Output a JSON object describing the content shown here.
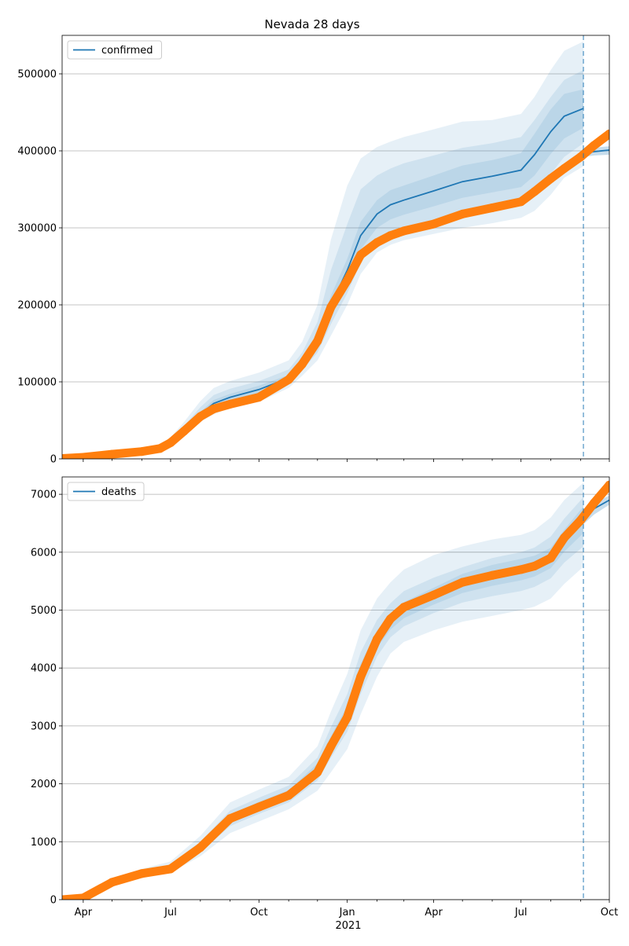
{
  "chart_data": [
    {
      "type": "line",
      "title": "Nevada 28 days",
      "xlabel": "",
      "ylabel": "",
      "x_range": [
        "2020-03-10",
        "2021-10-01"
      ],
      "ylim": [
        0,
        550000
      ],
      "yticks": [
        0,
        100000,
        200000,
        300000,
        400000,
        500000
      ],
      "ytick_labels": [
        "0",
        "100000",
        "200000",
        "300000",
        "400000",
        "500000"
      ],
      "grid": "horizontal",
      "legend_position": "top-left",
      "forecast_date": "2021-09-04",
      "colors": {
        "model": "#1f77b4",
        "observed": "#ff7f0e",
        "band": "#1f77b4"
      },
      "series": [
        {
          "name": "confirmed",
          "kind": "model-median",
          "x": [
            "2020-03-10",
            "2020-04-01",
            "2020-05-01",
            "2020-06-01",
            "2020-06-20",
            "2020-07-01",
            "2020-07-15",
            "2020-08-01",
            "2020-08-15",
            "2020-09-01",
            "2020-10-01",
            "2020-11-01",
            "2020-11-15",
            "2020-12-01",
            "2020-12-15",
            "2021-01-01",
            "2021-01-15",
            "2021-02-01",
            "2021-02-15",
            "2021-03-01",
            "2021-04-01",
            "2021-05-01",
            "2021-06-01",
            "2021-07-01",
            "2021-07-15",
            "2021-08-01",
            "2021-08-15",
            "2021-09-04"
          ],
          "values": [
            500,
            2500,
            6000,
            10000,
            14000,
            22000,
            38000,
            58000,
            72000,
            80000,
            90000,
            105000,
            125000,
            155000,
            200000,
            245000,
            290000,
            318000,
            330000,
            336000,
            348000,
            360000,
            367000,
            375000,
            395000,
            425000,
            445000,
            455000
          ]
        },
        {
          "name": "",
          "kind": "model-continuation",
          "x": [
            "2021-09-04",
            "2021-09-15",
            "2021-10-01"
          ],
          "values": [
            397000,
            399000,
            401000
          ]
        },
        {
          "name": "",
          "kind": "observed",
          "x": [
            "2020-03-10",
            "2020-04-01",
            "2020-05-01",
            "2020-06-01",
            "2020-06-20",
            "2020-07-01",
            "2020-07-15",
            "2020-08-01",
            "2020-08-15",
            "2020-09-01",
            "2020-10-01",
            "2020-11-01",
            "2020-11-15",
            "2020-12-01",
            "2020-12-15",
            "2021-01-01",
            "2021-01-15",
            "2021-02-01",
            "2021-02-15",
            "2021-03-01",
            "2021-04-01",
            "2021-05-01",
            "2021-06-01",
            "2021-07-01",
            "2021-07-15",
            "2021-08-01",
            "2021-08-15",
            "2021-09-01",
            "2021-09-15",
            "2021-10-01"
          ],
          "values": [
            500,
            2000,
            6000,
            9500,
            13500,
            21000,
            36000,
            55000,
            65000,
            71000,
            80000,
            103000,
            123000,
            153000,
            197000,
            232000,
            265000,
            281000,
            290000,
            296000,
            305000,
            318000,
            326000,
            334000,
            347000,
            364000,
            377000,
            392000,
            407000,
            422000
          ]
        }
      ],
      "bands": [
        {
          "x": [
            "2020-03-10",
            "2020-04-01",
            "2020-05-01",
            "2020-06-01",
            "2020-06-20",
            "2020-07-01",
            "2020-07-15",
            "2020-08-01",
            "2020-08-15",
            "2020-09-01",
            "2020-10-01",
            "2020-11-01",
            "2020-11-15",
            "2020-12-01",
            "2020-12-15",
            "2021-01-01",
            "2021-01-15",
            "2021-02-01",
            "2021-02-15",
            "2021-03-01",
            "2021-04-01",
            "2021-05-01",
            "2021-06-01",
            "2021-07-01",
            "2021-07-15",
            "2021-08-01",
            "2021-08-15",
            "2021-09-04"
          ],
          "lower": [
            300,
            1800,
            5000,
            8500,
            12000,
            18000,
            30000,
            48000,
            58000,
            66000,
            74000,
            92000,
            108000,
            128000,
            160000,
            200000,
            240000,
            268000,
            278000,
            284000,
            292000,
            300000,
            306000,
            313000,
            322000,
            343000,
            365000,
            380000
          ],
          "upper": [
            800,
            3500,
            7500,
            12000,
            17000,
            28000,
            48000,
            75000,
            92000,
            101000,
            112000,
            128000,
            152000,
            200000,
            285000,
            355000,
            390000,
            405000,
            412000,
            418000,
            428000,
            438000,
            440000,
            448000,
            470000,
            505000,
            530000,
            542000
          ]
        },
        {
          "x": [
            "2020-03-10",
            "2020-04-01",
            "2020-05-01",
            "2020-06-01",
            "2020-06-20",
            "2020-07-01",
            "2020-07-15",
            "2020-08-01",
            "2020-08-15",
            "2020-09-01",
            "2020-10-01",
            "2020-11-01",
            "2020-11-15",
            "2020-12-01",
            "2020-12-15",
            "2021-01-01",
            "2021-01-15",
            "2021-02-01",
            "2021-02-15",
            "2021-03-01",
            "2021-04-01",
            "2021-05-01",
            "2021-06-01",
            "2021-07-01",
            "2021-07-15",
            "2021-08-01",
            "2021-08-15",
            "2021-09-04"
          ],
          "lower": [
            350,
            2000,
            5300,
            9000,
            12700,
            19500,
            33000,
            52000,
            63000,
            71000,
            80000,
            97000,
            115000,
            138000,
            175000,
            215000,
            255000,
            282000,
            292000,
            298000,
            308000,
            318000,
            325000,
            332000,
            345000,
            370000,
            392000,
            410000
          ],
          "upper": [
            700,
            3000,
            7000,
            11000,
            15500,
            25000,
            43000,
            67000,
            83000,
            91000,
            101000,
            116000,
            138000,
            178000,
            245000,
            305000,
            350000,
            368000,
            377000,
            384000,
            394000,
            404000,
            410000,
            418000,
            440000,
            470000,
            492000,
            505000
          ]
        },
        {
          "x": [
            "2020-03-10",
            "2020-04-01",
            "2020-05-01",
            "2020-06-01",
            "2020-06-20",
            "2020-07-01",
            "2020-07-15",
            "2020-08-01",
            "2020-08-15",
            "2020-09-01",
            "2020-10-01",
            "2020-11-01",
            "2020-11-15",
            "2020-12-01",
            "2020-12-15",
            "2021-01-01",
            "2021-01-15",
            "2021-02-01",
            "2021-02-15",
            "2021-03-01",
            "2021-04-01",
            "2021-05-01",
            "2021-06-01",
            "2021-07-01",
            "2021-07-15",
            "2021-08-01",
            "2021-08-15",
            "2021-09-04"
          ],
          "lower": [
            420,
            2200,
            5600,
            9400,
            13300,
            20700,
            35500,
            55000,
            67500,
            75500,
            85000,
            101000,
            120000,
            147000,
            188000,
            230000,
            272000,
            300000,
            311000,
            317000,
            328000,
            339000,
            346000,
            353000,
            368000,
            396000,
            416000,
            430000
          ],
          "upper": [
            600,
            2800,
            6500,
            10600,
            14700,
            23300,
            40500,
            61000,
            76500,
            84500,
            95000,
            109000,
            130000,
            163000,
            212000,
            260000,
            308000,
            336000,
            349000,
            355000,
            368000,
            381000,
            388000,
            397000,
            422000,
            454000,
            474000,
            480000
          ]
        }
      ],
      "band_continuation": {
        "x": [
          "2021-09-04",
          "2021-09-15",
          "2021-10-01"
        ],
        "lower": [
          392000,
          394000,
          395000
        ],
        "upper": [
          402000,
          404000,
          406000
        ]
      }
    },
    {
      "type": "line",
      "title": "",
      "xlabel": "",
      "ylabel": "",
      "x_range": [
        "2020-03-10",
        "2021-10-01"
      ],
      "ylim": [
        0,
        7300
      ],
      "yticks": [
        0,
        1000,
        2000,
        3000,
        4000,
        5000,
        6000,
        7000
      ],
      "ytick_labels": [
        "0",
        "1000",
        "2000",
        "3000",
        "4000",
        "5000",
        "6000",
        "7000"
      ],
      "xticks": [
        "2020-04-01",
        "2020-07-01",
        "2020-10-01",
        "2021-01-01",
        "2021-04-01",
        "2021-07-01",
        "2021-10-01"
      ],
      "xtick_labels": [
        "Apr",
        "Jul",
        "Oct",
        "Jan",
        "Apr",
        "Jul",
        "Oct"
      ],
      "xtick_year_label": "2021",
      "grid": "horizontal",
      "legend_position": "top-left",
      "forecast_date": "2021-09-04",
      "colors": {
        "model": "#1f77b4",
        "observed": "#ff7f0e",
        "band": "#1f77b4"
      },
      "series": [
        {
          "name": "deaths",
          "kind": "model-median",
          "x": [
            "2020-03-10",
            "2020-04-01",
            "2020-05-01",
            "2020-06-01",
            "2020-07-01",
            "2020-08-01",
            "2020-09-01",
            "2020-10-01",
            "2020-11-01",
            "2020-12-01",
            "2020-12-15",
            "2021-01-01",
            "2021-01-15",
            "2021-02-01",
            "2021-02-15",
            "2021-03-01",
            "2021-04-01",
            "2021-05-01",
            "2021-06-01",
            "2021-07-01",
            "2021-07-15",
            "2021-08-01",
            "2021-08-15",
            "2021-09-04",
            "2021-09-15",
            "2021-10-01"
          ],
          "values": [
            0,
            30,
            300,
            450,
            560,
            900,
            1400,
            1620,
            1820,
            2250,
            2700,
            3200,
            3900,
            4500,
            4800,
            5000,
            5240,
            5460,
            5600,
            5700,
            5760,
            5900,
            6200,
            6560,
            6750,
            6900
          ]
        },
        {
          "name": "",
          "kind": "observed",
          "x": [
            "2020-03-10",
            "2020-04-01",
            "2020-05-01",
            "2020-06-01",
            "2020-07-01",
            "2020-08-01",
            "2020-09-01",
            "2020-10-01",
            "2020-11-01",
            "2020-12-01",
            "2020-12-15",
            "2021-01-01",
            "2021-01-15",
            "2021-02-01",
            "2021-02-15",
            "2021-03-01",
            "2021-04-01",
            "2021-05-01",
            "2021-06-01",
            "2021-07-01",
            "2021-07-15",
            "2021-08-01",
            "2021-08-15",
            "2021-09-01",
            "2021-09-15",
            "2021-10-01"
          ],
          "values": [
            0,
            30,
            300,
            450,
            530,
            900,
            1400,
            1600,
            1800,
            2200,
            2650,
            3150,
            3850,
            4500,
            4850,
            5050,
            5260,
            5480,
            5600,
            5700,
            5760,
            5900,
            6250,
            6550,
            6850,
            7160
          ]
        }
      ],
      "bands": [
        {
          "x": [
            "2020-03-10",
            "2020-04-01",
            "2020-05-01",
            "2020-06-01",
            "2020-07-01",
            "2020-08-01",
            "2020-09-01",
            "2020-10-01",
            "2020-11-01",
            "2020-12-01",
            "2020-12-15",
            "2021-01-01",
            "2021-01-15",
            "2021-02-01",
            "2021-02-15",
            "2021-03-01",
            "2021-04-01",
            "2021-05-01",
            "2021-06-01",
            "2021-07-01",
            "2021-07-15",
            "2021-08-01",
            "2021-08-15",
            "2021-09-04"
          ],
          "lower": [
            0,
            20,
            250,
            380,
            470,
            750,
            1150,
            1350,
            1560,
            1880,
            2200,
            2600,
            3200,
            3850,
            4250,
            4450,
            4650,
            4800,
            4900,
            5000,
            5060,
            5200,
            5450,
            5750
          ],
          "upper": [
            0,
            45,
            360,
            530,
            660,
            1100,
            1680,
            1900,
            2120,
            2650,
            3250,
            3900,
            4650,
            5200,
            5480,
            5700,
            5950,
            6100,
            6220,
            6300,
            6380,
            6600,
            6900,
            7200
          ]
        },
        {
          "x": [
            "2020-03-10",
            "2020-04-01",
            "2020-05-01",
            "2020-06-01",
            "2020-07-01",
            "2020-08-01",
            "2020-09-01",
            "2020-10-01",
            "2020-11-01",
            "2020-12-01",
            "2020-12-15",
            "2021-01-01",
            "2021-01-15",
            "2021-02-01",
            "2021-02-15",
            "2021-03-01",
            "2021-04-01",
            "2021-05-01",
            "2021-06-01",
            "2021-07-01",
            "2021-07-15",
            "2021-08-01",
            "2021-08-15",
            "2021-09-04"
          ],
          "lower": [
            0,
            24,
            270,
            410,
            510,
            820,
            1270,
            1480,
            1680,
            2060,
            2450,
            2900,
            3550,
            4200,
            4530,
            4720,
            4950,
            5130,
            5240,
            5330,
            5400,
            5550,
            5820,
            6100
          ],
          "upper": [
            0,
            38,
            330,
            490,
            610,
            1000,
            1540,
            1760,
            1970,
            2450,
            2980,
            3550,
            4270,
            4830,
            5120,
            5330,
            5560,
            5740,
            5900,
            6000,
            6080,
            6270,
            6580,
            6950
          ]
        },
        {
          "x": [
            "2020-03-10",
            "2020-04-01",
            "2020-05-01",
            "2020-06-01",
            "2020-07-01",
            "2020-08-01",
            "2020-09-01",
            "2020-10-01",
            "2020-11-01",
            "2020-12-01",
            "2020-12-15",
            "2021-01-01",
            "2021-01-15",
            "2021-02-01",
            "2021-02-15",
            "2021-03-01",
            "2021-04-01",
            "2021-05-01",
            "2021-06-01",
            "2021-07-01",
            "2021-07-15",
            "2021-08-01",
            "2021-08-15",
            "2021-09-04"
          ],
          "lower": [
            0,
            27,
            285,
            430,
            535,
            860,
            1335,
            1550,
            1750,
            2150,
            2575,
            3050,
            3725,
            4350,
            4665,
            4860,
            5095,
            5295,
            5420,
            5515,
            5580,
            5725,
            6010,
            6330
          ],
          "upper": [
            0,
            33,
            315,
            470,
            585,
            940,
            1465,
            1690,
            1890,
            2350,
            2825,
            3350,
            4075,
            4650,
            4935,
            5140,
            5385,
            5625,
            5780,
            5885,
            5940,
            6075,
            6390,
            6790
          ]
        }
      ],
      "band_continuation": {
        "x": [
          "2021-09-04",
          "2021-09-15",
          "2021-10-01"
        ],
        "lower": [
          6480,
          6650,
          6820
        ],
        "upper": [
          6640,
          6850,
          6980
        ]
      }
    }
  ]
}
